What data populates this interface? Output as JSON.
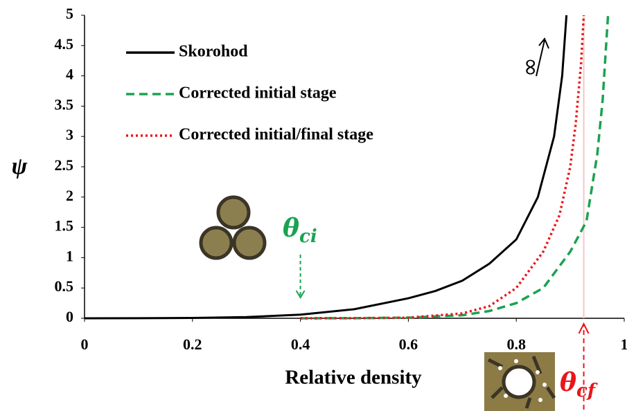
{
  "chart_data": {
    "type": "line",
    "xlabel": "Relative density",
    "ylabel": "ψ",
    "xlim": [
      0,
      1
    ],
    "ylim": [
      0,
      5
    ],
    "xticks": [
      0,
      0.2,
      0.4,
      0.6,
      0.8,
      1
    ],
    "yticks": [
      0,
      0.5,
      1,
      1.5,
      2,
      2.5,
      3,
      3.5,
      4,
      4.5,
      5
    ],
    "legend": "upper left",
    "series": [
      {
        "name": "Skorohod",
        "color": "#000000",
        "style": "solid",
        "x": [
          0,
          0.1,
          0.2,
          0.3,
          0.4,
          0.5,
          0.6,
          0.65,
          0.7,
          0.75,
          0.8,
          0.84,
          0.87,
          0.885,
          0.893
        ],
        "values": [
          0,
          0.001,
          0.005,
          0.02,
          0.06,
          0.15,
          0.33,
          0.45,
          0.62,
          0.9,
          1.3,
          2.0,
          3.0,
          4.0,
          5.0
        ]
      },
      {
        "name": "Corrected initial stage",
        "color": "#1aa251",
        "style": "dashed",
        "x": [
          0.4,
          0.5,
          0.6,
          0.7,
          0.75,
          0.8,
          0.85,
          0.9,
          0.93,
          0.95,
          0.96,
          0.97
        ],
        "values": [
          0,
          0.002,
          0.01,
          0.05,
          0.12,
          0.25,
          0.5,
          1.1,
          1.6,
          2.7,
          3.6,
          5.0
        ]
      },
      {
        "name": "Corrected initial/final stage",
        "color": "#e8161b",
        "style": "dotted",
        "x": [
          0.4,
          0.5,
          0.6,
          0.7,
          0.75,
          0.8,
          0.85,
          0.88,
          0.9,
          0.91,
          0.92,
          0.925
        ],
        "values": [
          0,
          0.002,
          0.01,
          0.08,
          0.2,
          0.5,
          1.1,
          1.7,
          2.5,
          3.2,
          4.2,
          5.0
        ]
      }
    ],
    "annotations": [
      {
        "text": "θ",
        "subscript": "ci",
        "color": "#1aa251",
        "x": 0.4
      },
      {
        "text": "θ",
        "subscript": "cf",
        "color": "#e8161b",
        "x": 0.925
      },
      {
        "text": "∞"
      }
    ]
  }
}
